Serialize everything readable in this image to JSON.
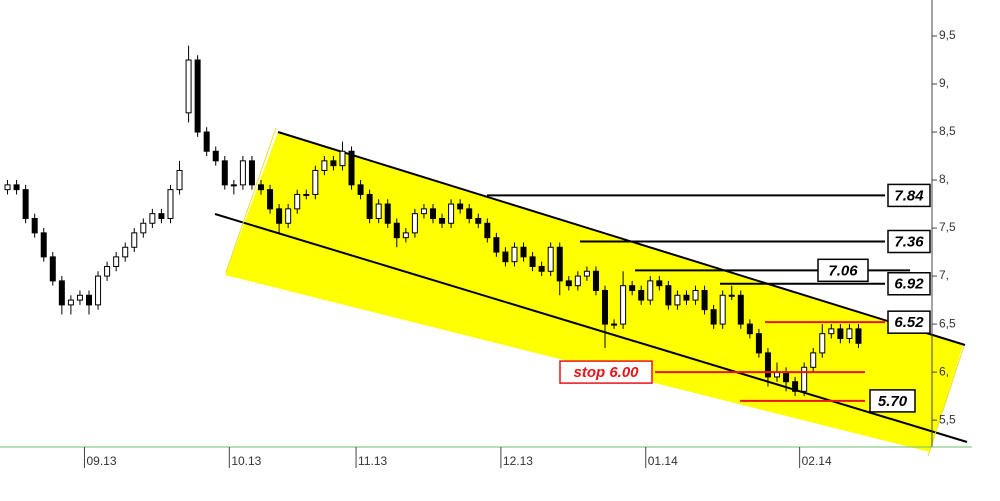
{
  "chart_data": {
    "type": "candlestick",
    "categories": [
      null,
      null,
      null,
      null,
      null,
      null,
      null,
      null,
      null,
      "09.13",
      null,
      null,
      null,
      null,
      null,
      null,
      null,
      null,
      null,
      null,
      null,
      null,
      null,
      null,
      null,
      "10.13",
      null,
      null,
      null,
      null,
      null,
      null,
      null,
      null,
      null,
      null,
      null,
      null,
      null,
      "11.13",
      null,
      null,
      null,
      null,
      null,
      null,
      null,
      null,
      null,
      null,
      null,
      null,
      null,
      null,
      null,
      "12.13",
      null,
      null,
      null,
      null,
      null,
      null,
      null,
      null,
      null,
      null,
      null,
      null,
      null,
      null,
      null,
      "01.14",
      null,
      null,
      null,
      null,
      null,
      null,
      null,
      null,
      null,
      null,
      null,
      null,
      null,
      null,
      null,
      null,
      "02.14",
      null,
      null,
      null,
      null,
      null,
      null
    ],
    "ohlc": [
      [
        7.9,
        8.0,
        7.85,
        7.95
      ],
      [
        7.95,
        8.0,
        7.85,
        7.9
      ],
      [
        7.9,
        7.95,
        7.55,
        7.6
      ],
      [
        7.6,
        7.65,
        7.4,
        7.45
      ],
      [
        7.45,
        7.5,
        7.15,
        7.2
      ],
      [
        7.2,
        7.25,
        6.9,
        6.95
      ],
      [
        6.95,
        7.0,
        6.6,
        6.7
      ],
      [
        6.7,
        6.8,
        6.6,
        6.75
      ],
      [
        6.75,
        6.85,
        6.7,
        6.8
      ],
      [
        6.8,
        6.85,
        6.6,
        6.7
      ],
      [
        6.7,
        7.05,
        6.65,
        7.0
      ],
      [
        7.0,
        7.15,
        6.95,
        7.1
      ],
      [
        7.1,
        7.25,
        7.05,
        7.2
      ],
      [
        7.2,
        7.35,
        7.15,
        7.3
      ],
      [
        7.3,
        7.5,
        7.25,
        7.45
      ],
      [
        7.45,
        7.6,
        7.4,
        7.55
      ],
      [
        7.55,
        7.7,
        7.5,
        7.65
      ],
      [
        7.65,
        7.7,
        7.55,
        7.6
      ],
      [
        7.6,
        7.95,
        7.55,
        7.9
      ],
      [
        7.9,
        8.2,
        7.85,
        8.1
      ],
      [
        8.7,
        9.4,
        8.6,
        9.25
      ],
      [
        9.25,
        9.3,
        8.45,
        8.5
      ],
      [
        8.5,
        8.55,
        8.25,
        8.3
      ],
      [
        8.3,
        8.35,
        8.15,
        8.2
      ],
      [
        8.2,
        8.25,
        7.9,
        7.95
      ],
      [
        7.95,
        8.0,
        7.85,
        7.95
      ],
      [
        7.95,
        8.25,
        7.9,
        8.2
      ],
      [
        8.2,
        8.25,
        7.9,
        7.95
      ],
      [
        7.95,
        8.0,
        7.85,
        7.9
      ],
      [
        7.9,
        7.95,
        7.65,
        7.7
      ],
      [
        7.7,
        7.75,
        7.45,
        7.55
      ],
      [
        7.55,
        7.75,
        7.5,
        7.7
      ],
      [
        7.7,
        7.9,
        7.65,
        7.85
      ],
      [
        7.85,
        7.9,
        7.8,
        7.85
      ],
      [
        7.85,
        8.15,
        7.8,
        8.1
      ],
      [
        8.1,
        8.25,
        8.05,
        8.2
      ],
      [
        8.2,
        8.25,
        8.1,
        8.15
      ],
      [
        8.15,
        8.4,
        8.1,
        8.3
      ],
      [
        8.3,
        8.35,
        7.9,
        7.95
      ],
      [
        7.95,
        8.0,
        7.8,
        7.85
      ],
      [
        7.85,
        7.9,
        7.55,
        7.6
      ],
      [
        7.6,
        7.8,
        7.55,
        7.75
      ],
      [
        7.75,
        7.8,
        7.5,
        7.55
      ],
      [
        7.55,
        7.6,
        7.3,
        7.4
      ],
      [
        7.4,
        7.5,
        7.35,
        7.45
      ],
      [
        7.45,
        7.7,
        7.4,
        7.65
      ],
      [
        7.65,
        7.75,
        7.6,
        7.7
      ],
      [
        7.7,
        7.75,
        7.55,
        7.6
      ],
      [
        7.6,
        7.65,
        7.5,
        7.55
      ],
      [
        7.55,
        7.8,
        7.5,
        7.75
      ],
      [
        7.75,
        7.8,
        7.65,
        7.7
      ],
      [
        7.7,
        7.75,
        7.55,
        7.6
      ],
      [
        7.6,
        7.65,
        7.5,
        7.55
      ],
      [
        7.55,
        7.6,
        7.35,
        7.4
      ],
      [
        7.4,
        7.45,
        7.2,
        7.25
      ],
      [
        7.25,
        7.3,
        7.1,
        7.15
      ],
      [
        7.15,
        7.35,
        7.1,
        7.3
      ],
      [
        7.3,
        7.35,
        7.15,
        7.2
      ],
      [
        7.2,
        7.25,
        7.05,
        7.1
      ],
      [
        7.1,
        7.15,
        7.0,
        7.05
      ],
      [
        7.05,
        7.35,
        7.0,
        7.3
      ],
      [
        7.3,
        7.35,
        6.8,
        6.95
      ],
      [
        6.95,
        7.0,
        6.85,
        6.9
      ],
      [
        6.9,
        7.05,
        6.85,
        7.0
      ],
      [
        7.0,
        7.1,
        6.95,
        7.05
      ],
      [
        7.05,
        7.1,
        6.8,
        6.85
      ],
      [
        6.85,
        6.9,
        6.25,
        6.5
      ],
      [
        6.5,
        6.55,
        6.45,
        6.5
      ],
      [
        6.5,
        7.05,
        6.45,
        6.9
      ],
      [
        6.9,
        6.95,
        6.8,
        6.85
      ],
      [
        6.85,
        6.9,
        6.7,
        6.75
      ],
      [
        6.75,
        7.0,
        6.7,
        6.95
      ],
      [
        6.95,
        7.0,
        6.85,
        6.9
      ],
      [
        6.9,
        6.95,
        6.65,
        6.7
      ],
      [
        6.7,
        6.85,
        6.65,
        6.8
      ],
      [
        6.8,
        6.85,
        6.7,
        6.75
      ],
      [
        6.75,
        6.9,
        6.7,
        6.85
      ],
      [
        6.85,
        6.9,
        6.6,
        6.65
      ],
      [
        6.65,
        6.7,
        6.45,
        6.5
      ],
      [
        6.5,
        6.85,
        6.45,
        6.8
      ],
      [
        6.8,
        6.9,
        6.75,
        6.8
      ],
      [
        6.8,
        6.85,
        6.45,
        6.5
      ],
      [
        6.5,
        6.55,
        6.35,
        6.4
      ],
      [
        6.4,
        6.45,
        6.15,
        6.2
      ],
      [
        6.2,
        6.25,
        5.85,
        5.95
      ],
      [
        5.95,
        6.1,
        5.9,
        6.0
      ],
      [
        6.0,
        6.05,
        5.8,
        5.9
      ],
      [
        5.9,
        5.95,
        5.75,
        5.8
      ],
      [
        5.8,
        6.1,
        5.75,
        6.05
      ],
      [
        6.05,
        6.25,
        6.0,
        6.2
      ],
      [
        6.2,
        6.5,
        6.15,
        6.4
      ],
      [
        6.4,
        6.5,
        6.35,
        6.45
      ],
      [
        6.45,
        6.5,
        6.3,
        6.35
      ],
      [
        6.35,
        6.5,
        6.3,
        6.45
      ],
      [
        6.45,
        6.5,
        6.25,
        6.3
      ]
    ],
    "ylim": [
      5.22,
      9.875
    ],
    "yticks": [
      {
        "value": 5.5,
        "label": "5,5"
      },
      {
        "value": 6,
        "label": "6,"
      },
      {
        "value": 6.5,
        "label": "6,5"
      },
      {
        "value": 7,
        "label": "7,"
      },
      {
        "value": 7.5,
        "label": "7,5"
      },
      {
        "value": 8,
        "label": "8,"
      },
      {
        "value": 8.5,
        "label": "8,5"
      },
      {
        "value": 9,
        "label": "9,"
      },
      {
        "value": 9.5,
        "label": "9,5"
      }
    ],
    "levels": [
      {
        "value": 7.84,
        "label": "7.84",
        "color": "#000000"
      },
      {
        "value": 7.36,
        "label": "7.36",
        "color": "#000000"
      },
      {
        "value": 7.06,
        "label": "7.06",
        "color": "#000000"
      },
      {
        "value": 6.92,
        "label": "6.92",
        "color": "#000000"
      },
      {
        "value": 6.52,
        "label": "6.52",
        "color": "#e8141b"
      },
      {
        "value": 6.0,
        "label": "stop 6.00",
        "color": "#e8141b"
      },
      {
        "value": 5.7,
        "label": "5.70",
        "color": "#e8141b"
      }
    ],
    "up_color": "#ffffff",
    "down_color": "#000000"
  }
}
